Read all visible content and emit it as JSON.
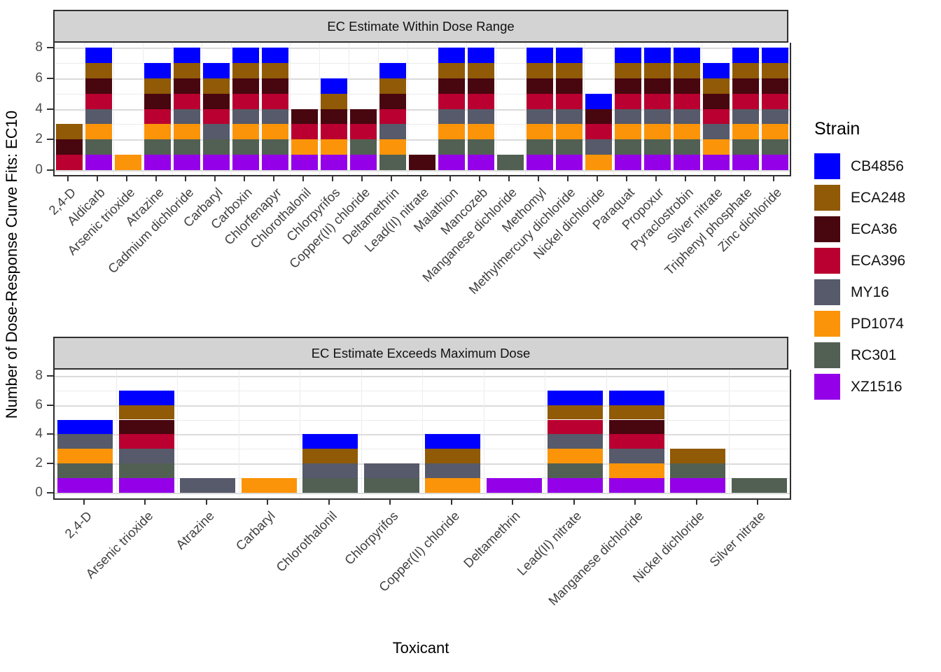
{
  "figure": {
    "ylabel": "Number of Dose-Response Curve Fits: EC10",
    "xlabel": "Toxicant",
    "legend_title": "Strain"
  },
  "strains": [
    {
      "name": "CB4856",
      "color": "#0000FF"
    },
    {
      "name": "ECA248",
      "color": "#905A06"
    },
    {
      "name": "ECA36",
      "color": "#48060F"
    },
    {
      "name": "ECA396",
      "color": "#B90030"
    },
    {
      "name": "MY16",
      "color": "#565A6A"
    },
    {
      "name": "PD1074",
      "color": "#FB9408"
    },
    {
      "name": "RC301",
      "color": "#526053"
    },
    {
      "name": "XZ1516",
      "color": "#9400E8"
    }
  ],
  "stack_order_bottom_to_top": [
    "XZ1516",
    "RC301",
    "PD1074",
    "MY16",
    "ECA396",
    "ECA36",
    "ECA248",
    "CB4856"
  ],
  "chart_data": [
    {
      "type": "bar",
      "stacked": true,
      "title": "EC Estimate Within Dose Range",
      "ylim": [
        0,
        8.4
      ],
      "yticks": [
        0,
        2,
        4,
        6,
        8
      ],
      "grid": true,
      "legend_position": "right",
      "categories": [
        "2,4-D",
        "Aldicarb",
        "Arsenic trioxide",
        "Atrazine",
        "Cadmium dichloride",
        "Carbaryl",
        "Carboxin",
        "Chlorfenapyr",
        "Chlorothalonil",
        "Chlorpyrifos",
        "Copper(II) chloride",
        "Deltamethrin",
        "Lead(II) nitrate",
        "Malathion",
        "Mancozeb",
        "Manganese dichloride",
        "Methomyl",
        "Methylmercury dichloride",
        "Nickel dichloride",
        "Paraquat",
        "Propoxur",
        "Pyraclostrobin",
        "Silver nitrate",
        "Triphenyl phosphate",
        "Zinc dichloride"
      ],
      "series": [
        {
          "name": "CB4856",
          "values": [
            0,
            1,
            0,
            1,
            1,
            1,
            1,
            1,
            0,
            1,
            0,
            1,
            0,
            1,
            1,
            0,
            1,
            1,
            1,
            1,
            1,
            1,
            1,
            1,
            1
          ]
        },
        {
          "name": "ECA248",
          "values": [
            1,
            1,
            0,
            1,
            1,
            1,
            1,
            1,
            0,
            1,
            0,
            1,
            0,
            1,
            1,
            0,
            1,
            1,
            0,
            1,
            1,
            1,
            1,
            1,
            1
          ]
        },
        {
          "name": "ECA36",
          "values": [
            1,
            1,
            0,
            1,
            1,
            1,
            1,
            1,
            1,
            1,
            1,
            1,
            1,
            1,
            1,
            0,
            1,
            1,
            1,
            1,
            1,
            1,
            1,
            1,
            1
          ]
        },
        {
          "name": "ECA396",
          "values": [
            1,
            1,
            0,
            1,
            1,
            1,
            1,
            1,
            1,
            1,
            1,
            1,
            0,
            1,
            1,
            0,
            1,
            1,
            1,
            1,
            1,
            1,
            1,
            1,
            1
          ]
        },
        {
          "name": "MY16",
          "values": [
            0,
            1,
            0,
            0,
            1,
            1,
            1,
            1,
            0,
            0,
            0,
            1,
            0,
            1,
            1,
            0,
            1,
            1,
            1,
            1,
            1,
            1,
            1,
            1,
            1
          ]
        },
        {
          "name": "PD1074",
          "values": [
            0,
            1,
            1,
            1,
            1,
            0,
            1,
            1,
            1,
            1,
            0,
            1,
            0,
            1,
            1,
            0,
            1,
            1,
            1,
            1,
            1,
            1,
            1,
            1,
            1
          ]
        },
        {
          "name": "RC301",
          "values": [
            0,
            1,
            0,
            1,
            1,
            1,
            1,
            1,
            0,
            0,
            1,
            1,
            0,
            1,
            1,
            1,
            1,
            1,
            0,
            1,
            1,
            1,
            0,
            1,
            1
          ]
        },
        {
          "name": "XZ1516",
          "values": [
            0,
            1,
            0,
            1,
            1,
            1,
            1,
            1,
            1,
            1,
            1,
            0,
            0,
            1,
            1,
            0,
            1,
            1,
            0,
            1,
            1,
            1,
            1,
            1,
            1
          ]
        }
      ]
    },
    {
      "type": "bar",
      "stacked": true,
      "title": "EC Estimate Exceeds Maximum Dose",
      "ylim": [
        0,
        8.4
      ],
      "yticks": [
        0,
        2,
        4,
        6,
        8
      ],
      "grid": true,
      "legend_position": "right",
      "categories": [
        "2,4-D",
        "Arsenic trioxide",
        "Atrazine",
        "Carbaryl",
        "Chlorothalonil",
        "Chlorpyrifos",
        "Copper(II) chloride",
        "Deltamethrin",
        "Lead(II) nitrate",
        "Manganese dichloride",
        "Nickel dichloride",
        "Silver nitrate"
      ],
      "series": [
        {
          "name": "CB4856",
          "values": [
            1,
            1,
            0,
            0,
            1,
            0,
            1,
            0,
            1,
            1,
            0,
            0
          ]
        },
        {
          "name": "ECA248",
          "values": [
            0,
            1,
            0,
            0,
            1,
            0,
            1,
            0,
            1,
            1,
            1,
            0
          ]
        },
        {
          "name": "ECA36",
          "values": [
            0,
            1,
            0,
            0,
            0,
            0,
            0,
            0,
            0,
            1,
            0,
            0
          ]
        },
        {
          "name": "ECA396",
          "values": [
            0,
            1,
            0,
            0,
            0,
            0,
            0,
            0,
            1,
            1,
            0,
            0
          ]
        },
        {
          "name": "MY16",
          "values": [
            1,
            1,
            1,
            0,
            1,
            1,
            1,
            0,
            1,
            1,
            0,
            0
          ]
        },
        {
          "name": "PD1074",
          "values": [
            1,
            0,
            0,
            1,
            0,
            0,
            1,
            0,
            1,
            1,
            0,
            0
          ]
        },
        {
          "name": "RC301",
          "values": [
            1,
            1,
            0,
            0,
            1,
            1,
            0,
            0,
            1,
            0,
            1,
            1
          ]
        },
        {
          "name": "XZ1516",
          "values": [
            1,
            1,
            0,
            0,
            0,
            0,
            0,
            1,
            1,
            1,
            1,
            0
          ]
        }
      ]
    }
  ]
}
